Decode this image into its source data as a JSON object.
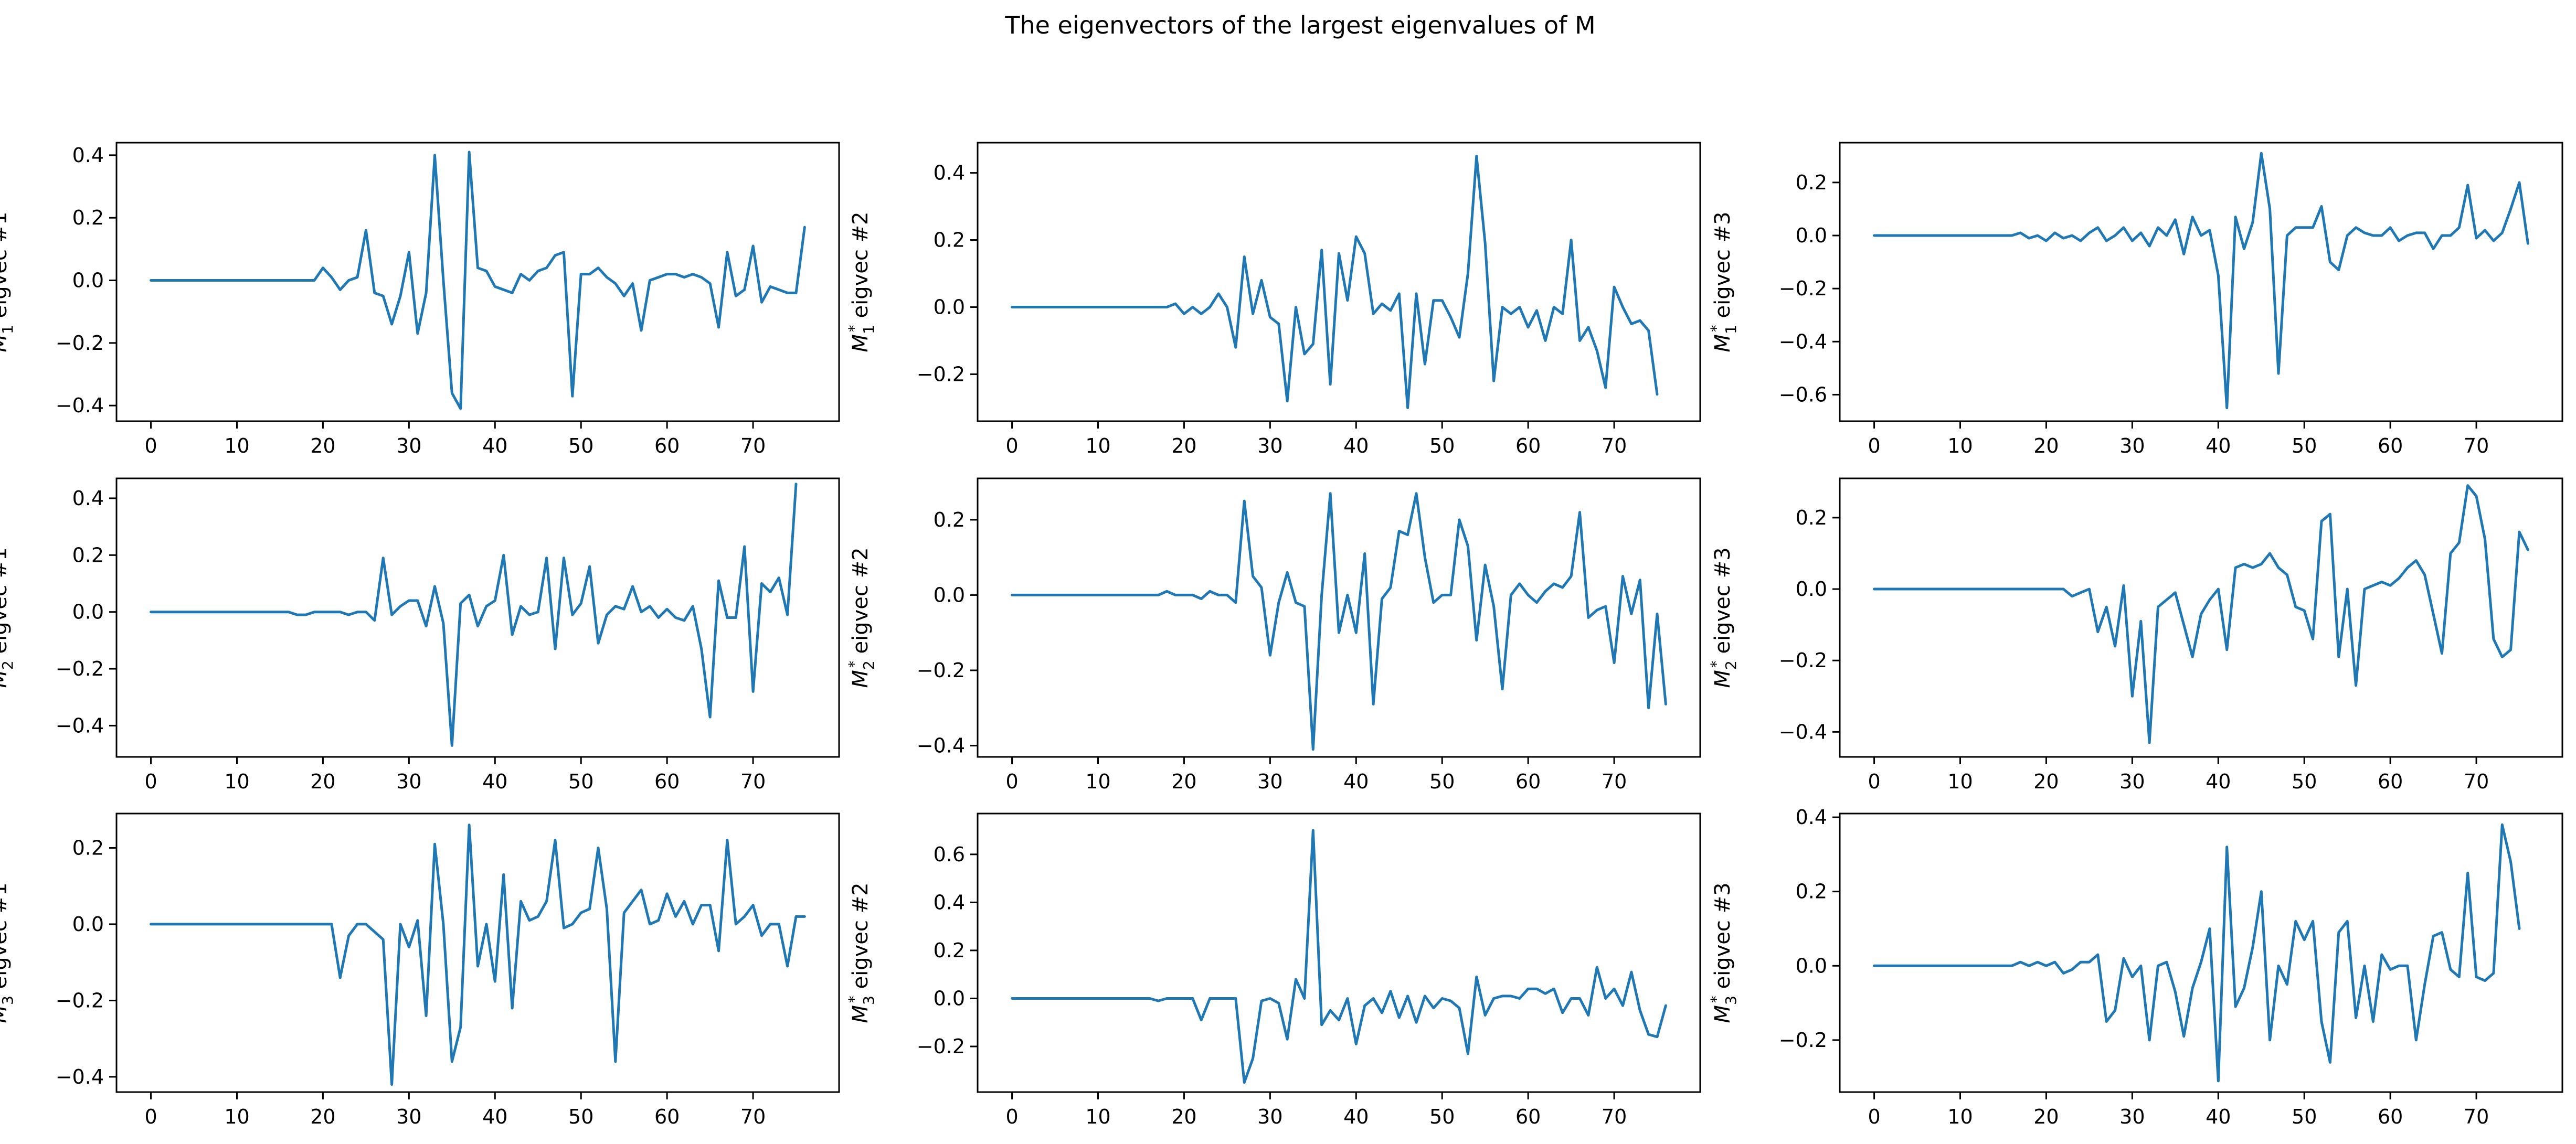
{
  "figure": {
    "title": "The eigenvectors of the largest eigenvalues of M"
  },
  "style": {
    "line_color": "#1f77b4",
    "background": "#ffffff"
  },
  "chart_data": [
    {
      "type": "line",
      "ylabel_base": "M",
      "ylabel_sub": "1",
      "ylabel_sup": "*",
      "ylabel_rest": " eigvec #1",
      "xlim": [
        -4,
        80
      ],
      "ylim": [
        -0.45,
        0.44
      ],
      "xticks": [
        0,
        10,
        20,
        30,
        40,
        50,
        60,
        70
      ],
      "yticks": [
        -0.4,
        -0.2,
        0.0,
        0.2,
        0.4
      ],
      "x_start": 0,
      "values": [
        0,
        0,
        0,
        0,
        0,
        0,
        0,
        0,
        0,
        0,
        0,
        0,
        0,
        0,
        0,
        0,
        0,
        0,
        0,
        0,
        0.04,
        0.01,
        -0.03,
        0.0,
        0.01,
        0.16,
        -0.04,
        -0.05,
        -0.14,
        -0.05,
        0.09,
        -0.17,
        -0.04,
        0.4,
        0.0,
        -0.36,
        -0.41,
        0.41,
        0.04,
        0.03,
        -0.02,
        -0.03,
        -0.04,
        0.02,
        0.0,
        0.03,
        0.04,
        0.08,
        0.09,
        -0.37,
        0.02,
        0.02,
        0.04,
        0.01,
        -0.01,
        -0.05,
        -0.01,
        -0.16,
        0.0,
        0.01,
        0.02,
        0.02,
        0.01,
        0.02,
        0.01,
        -0.01,
        -0.15,
        0.09,
        -0.05,
        -0.03,
        0.11,
        -0.07,
        -0.02,
        -0.03,
        -0.04,
        -0.04,
        0.17
      ]
    },
    {
      "type": "line",
      "ylabel_base": "M",
      "ylabel_sub": "1",
      "ylabel_sup": "*",
      "ylabel_rest": " eigvec #2",
      "xlim": [
        -4,
        80
      ],
      "ylim": [
        -0.34,
        0.49
      ],
      "xticks": [
        0,
        10,
        20,
        30,
        40,
        50,
        60,
        70
      ],
      "yticks": [
        -0.2,
        0.0,
        0.2,
        0.4
      ],
      "x_start": 0,
      "values": [
        0,
        0,
        0,
        0,
        0,
        0,
        0,
        0,
        0,
        0,
        0,
        0,
        0,
        0,
        0,
        0,
        0,
        0,
        0,
        0.01,
        -0.02,
        0.0,
        -0.02,
        0.0,
        0.04,
        0.0,
        -0.12,
        0.15,
        -0.02,
        0.08,
        -0.03,
        -0.05,
        -0.28,
        0.0,
        -0.14,
        -0.11,
        0.17,
        -0.23,
        0.16,
        0.02,
        0.21,
        0.16,
        -0.02,
        0.01,
        -0.01,
        0.04,
        -0.3,
        0.04,
        -0.17,
        0.02,
        0.02,
        -0.03,
        -0.09,
        0.1,
        0.45,
        0.19,
        -0.22,
        0.0,
        -0.02,
        0.0,
        -0.06,
        -0.01,
        -0.1,
        0.0,
        -0.02,
        0.2,
        -0.1,
        -0.06,
        -0.13,
        -0.24,
        0.06,
        0.0,
        -0.05,
        -0.04,
        -0.07,
        -0.26
      ]
    },
    {
      "type": "line",
      "ylabel_base": "M",
      "ylabel_sub": "1",
      "ylabel_sup": "*",
      "ylabel_rest": " eigvec #3",
      "xlim": [
        -4,
        80
      ],
      "ylim": [
        -0.7,
        0.35
      ],
      "xticks": [
        0,
        10,
        20,
        30,
        40,
        50,
        60,
        70
      ],
      "yticks": [
        -0.6,
        -0.4,
        -0.2,
        0.0,
        0.2
      ],
      "x_start": 0,
      "values": [
        0,
        0,
        0,
        0,
        0,
        0,
        0,
        0,
        0,
        0,
        0,
        0,
        0,
        0,
        0,
        0,
        0,
        0.01,
        -0.01,
        0.0,
        -0.02,
        0.01,
        -0.01,
        0.0,
        -0.02,
        0.01,
        0.03,
        -0.02,
        0.0,
        0.03,
        -0.02,
        0.01,
        -0.04,
        0.03,
        0.0,
        0.06,
        -0.07,
        0.07,
        0.0,
        0.02,
        -0.15,
        -0.65,
        0.07,
        -0.05,
        0.05,
        0.31,
        0.1,
        -0.52,
        0.0,
        0.03,
        0.03,
        0.03,
        0.11,
        -0.1,
        -0.13,
        0.0,
        0.03,
        0.01,
        0.0,
        0.0,
        0.03,
        -0.02,
        0.0,
        0.01,
        0.01,
        -0.05,
        0.0,
        0.0,
        0.03,
        0.19,
        -0.01,
        0.02,
        -0.02,
        0.01,
        0.1,
        0.2,
        -0.03
      ]
    },
    {
      "type": "line",
      "ylabel_base": "M",
      "ylabel_sub": "2",
      "ylabel_sup": "*",
      "ylabel_rest": " eigvec #1",
      "xlim": [
        -4,
        80
      ],
      "ylim": [
        -0.51,
        0.47
      ],
      "xticks": [
        0,
        10,
        20,
        30,
        40,
        50,
        60,
        70
      ],
      "yticks": [
        -0.4,
        -0.2,
        0.0,
        0.2,
        0.4
      ],
      "x_start": 0,
      "values": [
        0,
        0,
        0,
        0,
        0,
        0,
        0,
        0,
        0,
        0,
        0,
        0,
        0,
        0,
        0,
        0,
        0,
        -0.01,
        -0.01,
        0.0,
        0.0,
        0.0,
        0.0,
        -0.01,
        0.0,
        0.0,
        -0.03,
        0.19,
        -0.01,
        0.02,
        0.04,
        0.04,
        -0.05,
        0.09,
        -0.04,
        -0.47,
        0.03,
        0.06,
        -0.05,
        0.02,
        0.04,
        0.2,
        -0.08,
        0.02,
        -0.01,
        0.0,
        0.19,
        -0.13,
        0.19,
        -0.01,
        0.03,
        0.16,
        -0.11,
        -0.01,
        0.02,
        0.01,
        0.09,
        0.0,
        0.02,
        -0.02,
        0.01,
        -0.02,
        -0.03,
        0.02,
        -0.13,
        -0.37,
        0.11,
        -0.02,
        -0.02,
        0.23,
        -0.28,
        0.1,
        0.07,
        0.12,
        -0.01,
        0.45
      ]
    },
    {
      "type": "line",
      "ylabel_base": "M",
      "ylabel_sub": "2",
      "ylabel_sup": "*",
      "ylabel_rest": " eigvec #2",
      "xlim": [
        -4,
        80
      ],
      "ylim": [
        -0.43,
        0.31
      ],
      "xticks": [
        0,
        10,
        20,
        30,
        40,
        50,
        60,
        70
      ],
      "yticks": [
        -0.4,
        -0.2,
        0.0,
        0.2
      ],
      "x_start": 0,
      "values": [
        0,
        0,
        0,
        0,
        0,
        0,
        0,
        0,
        0,
        0,
        0,
        0,
        0,
        0,
        0,
        0,
        0,
        0,
        0.01,
        0.0,
        0.0,
        0.0,
        -0.01,
        0.01,
        0.0,
        0.0,
        -0.02,
        0.25,
        0.05,
        0.02,
        -0.16,
        -0.02,
        0.06,
        -0.02,
        -0.03,
        -0.41,
        0.0,
        0.27,
        -0.1,
        0.0,
        -0.1,
        0.11,
        -0.29,
        -0.01,
        0.02,
        0.17,
        0.16,
        0.27,
        0.1,
        -0.02,
        0.0,
        0.0,
        0.2,
        0.13,
        -0.12,
        0.08,
        -0.03,
        -0.25,
        0.0,
        0.03,
        0.0,
        -0.02,
        0.01,
        0.03,
        0.02,
        0.05,
        0.22,
        -0.06,
        -0.04,
        -0.03,
        -0.18,
        0.05,
        -0.05,
        0.04,
        -0.3,
        -0.05,
        -0.29
      ]
    },
    {
      "type": "line",
      "ylabel_base": "M",
      "ylabel_sub": "2",
      "ylabel_sup": "*",
      "ylabel_rest": " eigvec #3",
      "xlim": [
        -4,
        80
      ],
      "ylim": [
        -0.47,
        0.31
      ],
      "xticks": [
        0,
        10,
        20,
        30,
        40,
        50,
        60,
        70
      ],
      "yticks": [
        -0.4,
        -0.2,
        0.0,
        0.2
      ],
      "x_start": 0,
      "values": [
        0,
        0,
        0,
        0,
        0,
        0,
        0,
        0,
        0,
        0,
        0,
        0,
        0,
        0,
        0,
        0,
        0,
        0,
        0,
        0,
        0,
        0,
        0,
        -0.02,
        -0.01,
        0.0,
        -0.12,
        -0.05,
        -0.16,
        0.01,
        -0.3,
        -0.09,
        -0.43,
        -0.05,
        -0.03,
        -0.01,
        -0.1,
        -0.19,
        -0.07,
        -0.03,
        0.0,
        -0.17,
        0.06,
        0.07,
        0.06,
        0.07,
        0.1,
        0.06,
        0.04,
        -0.05,
        -0.06,
        -0.14,
        0.19,
        0.21,
        -0.19,
        0.0,
        -0.27,
        0.0,
        0.01,
        0.02,
        0.01,
        0.03,
        0.06,
        0.08,
        0.04,
        -0.07,
        -0.18,
        0.1,
        0.13,
        0.29,
        0.26,
        0.14,
        -0.14,
        -0.19,
        -0.17,
        0.16,
        0.11
      ]
    },
    {
      "type": "line",
      "ylabel_base": "M",
      "ylabel_sub": "3",
      "ylabel_sup": "*",
      "ylabel_rest": " eigvec #1",
      "xlim": [
        -4,
        80
      ],
      "ylim": [
        -0.44,
        0.29
      ],
      "xticks": [
        0,
        10,
        20,
        30,
        40,
        50,
        60,
        70
      ],
      "yticks": [
        -0.4,
        -0.2,
        0.0,
        0.2
      ],
      "x_start": 0,
      "values": [
        0,
        0,
        0,
        0,
        0,
        0,
        0,
        0,
        0,
        0,
        0,
        0,
        0,
        0,
        0,
        0,
        0,
        0,
        0,
        0,
        0,
        0,
        -0.14,
        -0.03,
        0.0,
        0.0,
        -0.02,
        -0.04,
        -0.42,
        0.0,
        -0.06,
        0.01,
        -0.24,
        0.21,
        0.0,
        -0.36,
        -0.27,
        0.26,
        -0.11,
        0.0,
        -0.15,
        0.13,
        -0.22,
        0.06,
        0.01,
        0.02,
        0.06,
        0.22,
        -0.01,
        0.0,
        0.03,
        0.04,
        0.2,
        0.04,
        -0.36,
        0.03,
        0.06,
        0.09,
        0.0,
        0.01,
        0.08,
        0.02,
        0.06,
        0.0,
        0.05,
        0.05,
        -0.07,
        0.22,
        0.0,
        0.02,
        0.05,
        -0.03,
        0.0,
        0.0,
        -0.11,
        0.02,
        0.02
      ]
    },
    {
      "type": "line",
      "ylabel_base": "M",
      "ylabel_sub": "3",
      "ylabel_sup": "*",
      "ylabel_rest": " eigvec #2",
      "xlim": [
        -4,
        80
      ],
      "ylim": [
        -0.39,
        0.77
      ],
      "xticks": [
        0,
        10,
        20,
        30,
        40,
        50,
        60,
        70
      ],
      "yticks": [
        -0.2,
        0.0,
        0.2,
        0.4,
        0.6
      ],
      "x_start": 0,
      "values": [
        0,
        0,
        0,
        0,
        0,
        0,
        0,
        0,
        0,
        0,
        0,
        0,
        0,
        0,
        0,
        0,
        0,
        -0.01,
        0.0,
        0.0,
        0.0,
        0.0,
        -0.09,
        0.0,
        0.0,
        0.0,
        0.0,
        -0.35,
        -0.25,
        -0.01,
        0.0,
        -0.02,
        -0.17,
        0.08,
        0.0,
        0.7,
        -0.11,
        -0.05,
        -0.09,
        0.0,
        -0.19,
        -0.03,
        0.0,
        -0.06,
        0.03,
        -0.08,
        0.01,
        -0.1,
        0.01,
        -0.04,
        0.0,
        -0.01,
        -0.04,
        -0.23,
        0.09,
        -0.07,
        0.0,
        0.01,
        0.01,
        0.0,
        0.04,
        0.04,
        0.02,
        0.04,
        -0.06,
        0.0,
        0.0,
        -0.07,
        0.13,
        0.0,
        0.04,
        -0.03,
        0.11,
        -0.05,
        -0.15,
        -0.16,
        -0.03
      ]
    },
    {
      "type": "line",
      "ylabel_base": "M",
      "ylabel_sub": "3",
      "ylabel_sup": "*",
      "ylabel_rest": " eigvec #3",
      "xlim": [
        -4,
        80
      ],
      "ylim": [
        -0.34,
        0.41
      ],
      "xticks": [
        0,
        10,
        20,
        30,
        40,
        50,
        60,
        70
      ],
      "yticks": [
        -0.2,
        0.0,
        0.2,
        0.4
      ],
      "x_start": 0,
      "values": [
        0,
        0,
        0,
        0,
        0,
        0,
        0,
        0,
        0,
        0,
        0,
        0,
        0,
        0,
        0,
        0,
        0,
        0.01,
        0.0,
        0.01,
        0.0,
        0.01,
        -0.02,
        -0.01,
        0.01,
        0.01,
        0.03,
        -0.15,
        -0.12,
        0.02,
        -0.03,
        0.0,
        -0.2,
        0.0,
        0.01,
        -0.07,
        -0.19,
        -0.06,
        0.01,
        0.1,
        -0.31,
        0.32,
        -0.11,
        -0.06,
        0.05,
        0.2,
        -0.2,
        0.0,
        -0.05,
        0.12,
        0.07,
        0.12,
        -0.15,
        -0.26,
        0.09,
        0.12,
        -0.14,
        0.0,
        -0.15,
        0.03,
        -0.01,
        0.0,
        0.0,
        -0.2,
        -0.05,
        0.08,
        0.09,
        -0.01,
        -0.03,
        0.25,
        -0.03,
        -0.04,
        -0.02,
        0.38,
        0.28,
        0.1
      ]
    }
  ]
}
